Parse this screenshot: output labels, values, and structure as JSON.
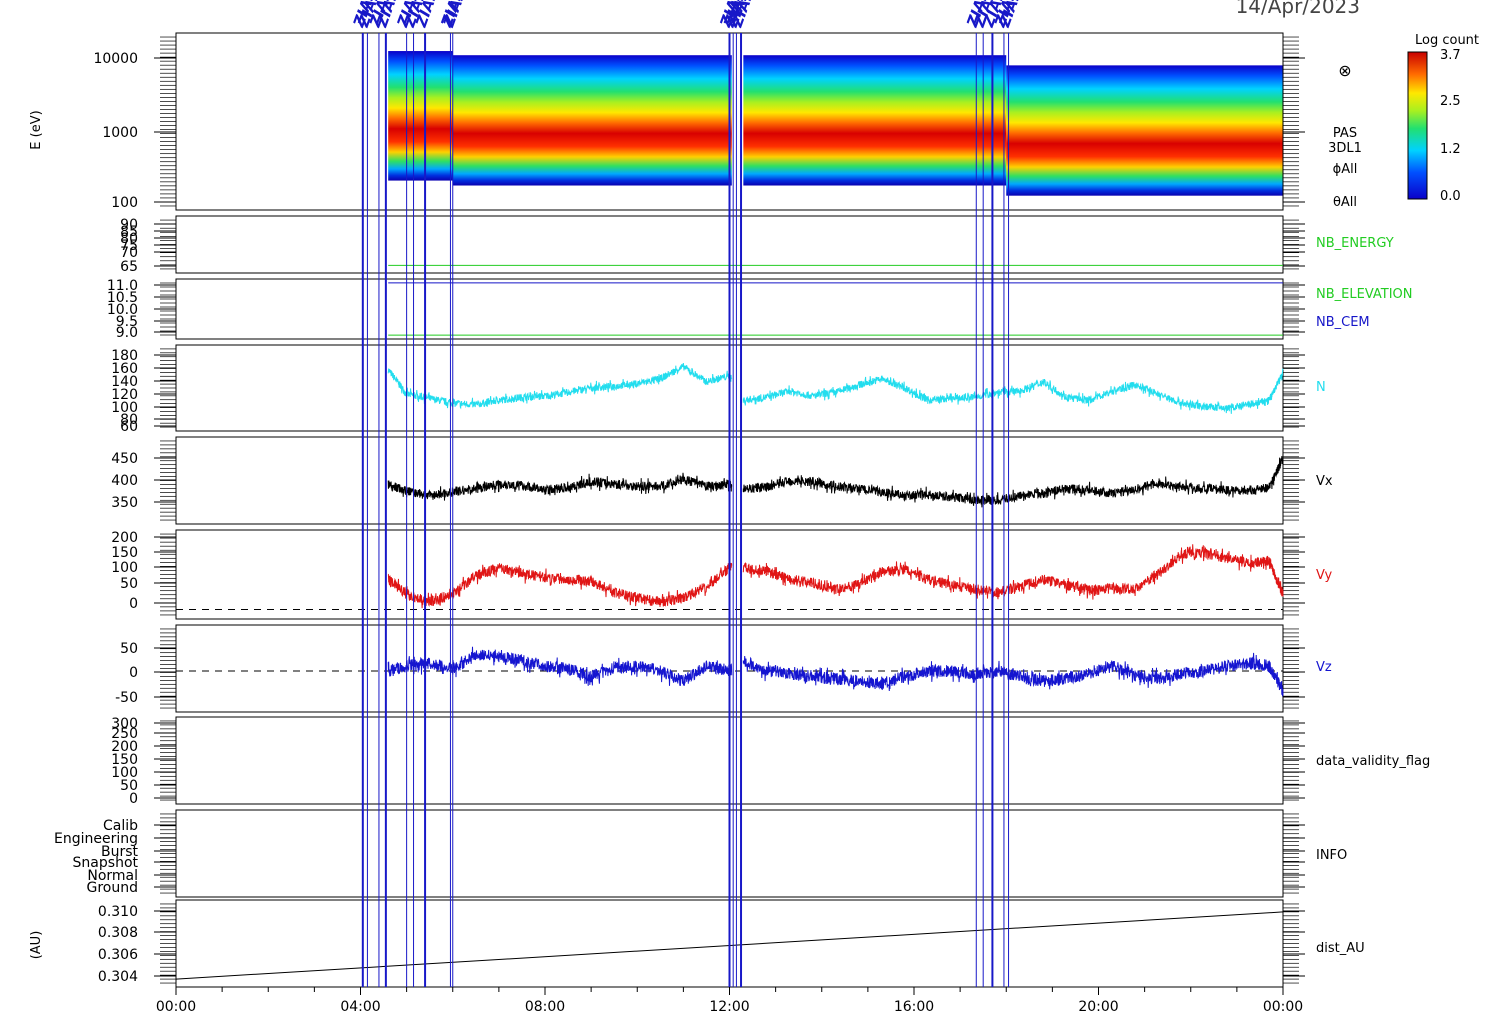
{
  "date_label": "14/Apr/2023",
  "colorbar": {
    "title": "Log count",
    "ticks": [
      "3.7",
      "2.5",
      "1.2",
      "0.0"
    ]
  },
  "time_axis": {
    "ticks": [
      "00:00",
      "04:00",
      "08:00",
      "12:00",
      "16:00",
      "20:00",
      "00:00"
    ]
  },
  "event_markers": {
    "label": "ZIAS",
    "hours": [
      4.05,
      4.15,
      4.4,
      4.55,
      5.0,
      5.15,
      5.4,
      5.95,
      6.0,
      12.0,
      12.08,
      12.15,
      12.25,
      17.35,
      17.5,
      17.7,
      17.95,
      18.05
    ]
  },
  "panels": [
    {
      "id": "energy",
      "ylabel": "E (eV)",
      "yticks": [
        "10000",
        "1000",
        "100"
      ],
      "side_labels": [
        "PAS",
        "3DL1",
        "ϕAll",
        "θAll"
      ],
      "symbol": "⊗"
    },
    {
      "id": "nb-energy",
      "yticks": [
        "90",
        "85",
        "80",
        "75",
        "70",
        "65"
      ],
      "side_labels": [
        "NB_ENERGY"
      ],
      "side_colors": [
        "#22cc22"
      ]
    },
    {
      "id": "nb-elevation",
      "yticks": [
        "11.0",
        "10.5",
        "10.0",
        "9.5",
        "9.0"
      ],
      "side_labels": [
        "NB_ELEVATION",
        "NB_CEM"
      ],
      "side_colors": [
        "#22cc22",
        "#1515c8"
      ]
    },
    {
      "id": "density",
      "yticks": [
        "180",
        "160",
        "140",
        "120",
        "100",
        "80",
        "60"
      ],
      "side_labels": [
        "N"
      ],
      "side_colors": [
        "#22ddee"
      ]
    },
    {
      "id": "vx",
      "yticks": [
        "450",
        "400",
        "350"
      ],
      "side_labels": [
        "Vx"
      ],
      "side_colors": [
        "#000000"
      ]
    },
    {
      "id": "vy",
      "yticks": [
        "200",
        "150",
        "100",
        "50",
        "0"
      ],
      "side_labels": [
        "Vy"
      ],
      "side_colors": [
        "#e01515"
      ]
    },
    {
      "id": "vz",
      "yticks": [
        "50",
        "0",
        "-50"
      ],
      "side_labels": [
        "Vz"
      ],
      "side_colors": [
        "#1515d0"
      ]
    },
    {
      "id": "validity",
      "yticks": [
        "300",
        "250",
        "200",
        "150",
        "100",
        "50",
        "0"
      ],
      "side_labels": [
        "data_validity_flag"
      ]
    },
    {
      "id": "info",
      "yticks": [
        "Calib",
        "Engineering",
        "Burst",
        "Snapshot",
        "Normal",
        "Ground"
      ],
      "side_labels": [
        "INFO"
      ]
    },
    {
      "id": "dist",
      "ylabel": "(AU)",
      "yticks": [
        "0.310",
        "0.308",
        "0.306",
        "0.304"
      ],
      "side_labels": [
        "dist_AU"
      ]
    }
  ],
  "chart_data": {
    "type": "line",
    "x_unit": "hours since 14/Apr/2023 00:00",
    "x_range": [
      0,
      24
    ],
    "x_ticks": [
      "00:00",
      "04:00",
      "08:00",
      "12:00",
      "16:00",
      "20:00",
      "00:00"
    ],
    "data_gap_hours": [
      12.05,
      12.3
    ],
    "spectrogram": {
      "name": "PAS 3DL1",
      "ylabel": "E (eV)",
      "y_scale": "log",
      "y_range": [
        100,
        15000
      ],
      "color_range": [
        0.0,
        3.7
      ],
      "coverage_hours": [
        4.6,
        24
      ],
      "energy_band_eV": [
        [
          4.6,
          230,
          9000
        ],
        [
          6.0,
          200,
          8000
        ],
        [
          18.0,
          150,
          6000
        ]
      ],
      "peak_energy_eV": 850
    },
    "series": [
      {
        "name": "NB_ENERGY",
        "color": "#22cc22",
        "x": [
          4.6,
          24
        ],
        "y": [
          66,
          66
        ],
        "ylim": [
          62,
          92
        ]
      },
      {
        "name": "NB_ELEVATION",
        "color": "#22cc22",
        "x": [
          4.6,
          24
        ],
        "y": [
          9.0,
          9.0
        ],
        "ylim": [
          8.85,
          11.15
        ]
      },
      {
        "name": "NB_CEM",
        "color": "#1515c8",
        "x": [
          4.6,
          24
        ],
        "y": [
          11.0,
          11.0
        ],
        "ylim": [
          8.85,
          11.15
        ]
      },
      {
        "name": "N",
        "color": "#22ddee",
        "ylim": [
          55,
          195
        ],
        "x": [
          4.6,
          5.0,
          5.5,
          6.0,
          6.5,
          7.0,
          7.5,
          8.0,
          8.5,
          9.0,
          9.5,
          10.0,
          10.5,
          11.0,
          11.5,
          12.0,
          12.3,
          12.8,
          13.3,
          13.8,
          14.3,
          14.8,
          15.3,
          15.8,
          16.3,
          16.8,
          17.3,
          17.8,
          18.3,
          18.8,
          19.3,
          19.8,
          20.3,
          20.8,
          21.3,
          21.8,
          22.3,
          22.8,
          23.3,
          23.7,
          24.0
        ],
        "y": [
          155,
          115,
          108,
          100,
          98,
          105,
          110,
          112,
          118,
          125,
          128,
          132,
          140,
          160,
          135,
          145,
          105,
          110,
          120,
          112,
          118,
          130,
          140,
          125,
          105,
          108,
          110,
          118,
          120,
          135,
          110,
          105,
          120,
          130,
          115,
          100,
          95,
          92,
          98,
          105,
          150
        ]
      },
      {
        "name": "Vx",
        "color": "#000000",
        "ylim": [
          300,
          485
        ],
        "x": [
          4.6,
          5.0,
          5.5,
          6.0,
          6.5,
          7.0,
          7.5,
          8.0,
          8.5,
          9.0,
          9.5,
          10.0,
          10.5,
          11.0,
          11.5,
          12.0,
          12.3,
          12.8,
          13.3,
          13.8,
          14.3,
          14.8,
          15.3,
          15.8,
          16.3,
          16.8,
          17.3,
          17.8,
          18.3,
          18.8,
          19.3,
          19.8,
          20.3,
          20.8,
          21.3,
          21.8,
          22.3,
          22.8,
          23.3,
          23.7,
          24.0
        ],
        "y": [
          385,
          370,
          360,
          368,
          375,
          385,
          382,
          372,
          378,
          390,
          385,
          380,
          380,
          395,
          380,
          385,
          375,
          378,
          392,
          390,
          380,
          375,
          368,
          360,
          362,
          358,
          352,
          350,
          360,
          365,
          375,
          372,
          365,
          375,
          385,
          380,
          375,
          372,
          372,
          378,
          440
        ]
      },
      {
        "name": "Vy",
        "color": "#e01515",
        "ylim": [
          -25,
          210
        ],
        "x": [
          4.6,
          5.0,
          5.5,
          6.0,
          6.5,
          7.0,
          7.5,
          8.0,
          8.5,
          9.0,
          9.5,
          10.0,
          10.5,
          11.0,
          11.5,
          12.0,
          12.3,
          12.8,
          13.3,
          13.8,
          14.3,
          14.8,
          15.3,
          15.8,
          16.3,
          16.8,
          17.3,
          17.8,
          18.3,
          18.8,
          19.3,
          19.8,
          20.3,
          20.8,
          21.3,
          21.8,
          22.3,
          22.8,
          23.3,
          23.7,
          24.0
        ],
        "y": [
          80,
          40,
          20,
          40,
          90,
          110,
          95,
          85,
          80,
          75,
          45,
          30,
          20,
          30,
          60,
          110,
          110,
          100,
          80,
          70,
          55,
          65,
          100,
          105,
          80,
          65,
          55,
          45,
          60,
          80,
          65,
          50,
          55,
          55,
          95,
          145,
          150,
          135,
          120,
          130,
          40
        ]
      },
      {
        "name": "Vz",
        "color": "#1515d0",
        "ylim": [
          -80,
          90
        ],
        "x": [
          4.6,
          5.0,
          5.5,
          6.0,
          6.5,
          7.0,
          7.5,
          8.0,
          8.5,
          9.0,
          9.5,
          10.0,
          10.5,
          11.0,
          11.5,
          12.0,
          12.3,
          12.8,
          13.3,
          13.8,
          14.3,
          14.8,
          15.3,
          15.8,
          16.3,
          16.8,
          17.3,
          17.8,
          18.3,
          18.8,
          19.3,
          19.8,
          20.3,
          20.8,
          21.3,
          21.8,
          22.3,
          22.8,
          23.3,
          23.7,
          24.0
        ],
        "y": [
          0,
          10,
          15,
          5,
          30,
          30,
          20,
          10,
          5,
          -10,
          5,
          10,
          0,
          -20,
          10,
          0,
          20,
          0,
          -5,
          -10,
          -15,
          -20,
          -25,
          -10,
          0,
          0,
          -5,
          0,
          -10,
          -20,
          -15,
          -5,
          10,
          -10,
          -15,
          -5,
          0,
          10,
          15,
          10,
          -40
        ]
      },
      {
        "name": "dist_AU",
        "color": "#000000",
        "x": [
          0,
          24
        ],
        "y": [
          0.3033,
          0.3101
        ],
        "ylim": [
          0.3025,
          0.3113
        ]
      }
    ]
  }
}
